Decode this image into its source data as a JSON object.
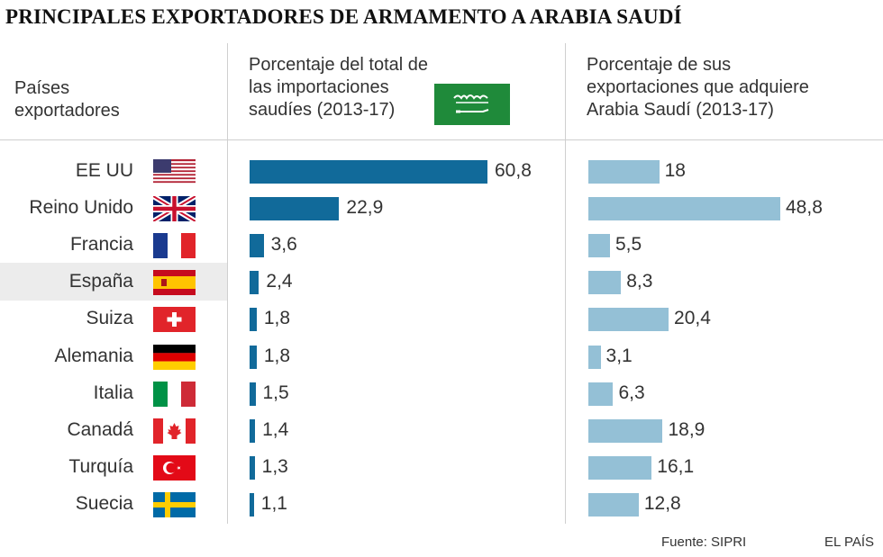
{
  "title": "PRINCIPALES EXPORTADORES DE ARMAMENTO A ARABIA SAUDÍ",
  "headers": {
    "countries": "Países\nexportadores",
    "col1": "Porcentaje del total de\nlas importaciones\nsaudíes (2013-17)",
    "col2": "Porcentaje de sus\nexportaciones que adquiere\nArabia Saudí (2013-17)"
  },
  "colors": {
    "bar1": "#116a9a",
    "bar2": "#94c0d6",
    "highlight": "#ececec"
  },
  "chart_data": {
    "type": "bar",
    "orientation": "horizontal",
    "categories": [
      "EE UU",
      "Reino Unido",
      "Francia",
      "España",
      "Suiza",
      "Alemania",
      "Italia",
      "Canadá",
      "Turquía",
      "Suecia"
    ],
    "flags": [
      "usa-flag-icon",
      "uk-flag-icon",
      "france-flag-icon",
      "spain-flag-icon",
      "switzerland-flag-icon",
      "germany-flag-icon",
      "italy-flag-icon",
      "canada-flag-icon",
      "turkey-flag-icon",
      "sweden-flag-icon"
    ],
    "highlighted": "España",
    "series": [
      {
        "values": [
          60.8,
          22.9,
          3.6,
          2.4,
          1.8,
          1.8,
          1.5,
          1.4,
          1.3,
          1.1
        ]
      },
      {
        "values": [
          18,
          48.8,
          5.5,
          8.3,
          20.4,
          3.1,
          6.3,
          18.9,
          16.1,
          12.8
        ]
      }
    ],
    "labels1": [
      "60,8",
      "22,9",
      "3,6",
      "2,4",
      "1,8",
      "1,8",
      "1,5",
      "1,4",
      "1,3",
      "1,1"
    ],
    "labels2": [
      "18",
      "48,8",
      "5,5",
      "8,3",
      "20,4",
      "3,1",
      "6,3",
      "18,9",
      "16,1",
      "12,8"
    ]
  },
  "footer": {
    "source": "Fuente: SIPRI",
    "brand": "EL PAÍS"
  }
}
